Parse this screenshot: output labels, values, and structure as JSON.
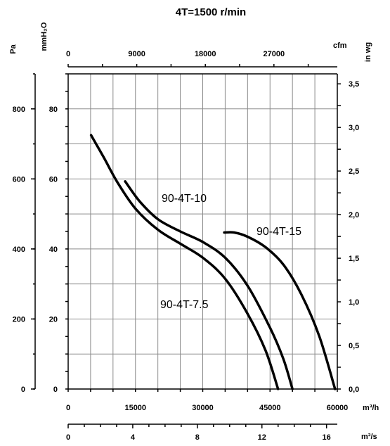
{
  "chart_data": {
    "type": "line",
    "title": "4T=1500 r/min",
    "x_axes": {
      "m3h": {
        "unit": "m³/h",
        "range": [
          0,
          60000
        ],
        "ticks": [
          "0",
          "15000",
          "30000",
          "45000",
          "60000"
        ]
      },
      "cfm": {
        "unit": "cfm",
        "range": [
          0,
          36000
        ],
        "ticks": [
          "0",
          "9000",
          "18000",
          "27000"
        ]
      },
      "m3s": {
        "unit": "m³/s",
        "range": [
          0,
          16.667
        ],
        "ticks": [
          "0",
          "4",
          "8",
          "12",
          "16"
        ]
      }
    },
    "y_axes": {
      "pa": {
        "unit": "Pa",
        "range": [
          0,
          900
        ],
        "ticks": [
          "0",
          "200",
          "400",
          "600",
          "800"
        ]
      },
      "mmh2o": {
        "unit": "mmH₂O",
        "range": [
          0,
          90
        ],
        "ticks": [
          "0",
          "20",
          "40",
          "60",
          "80"
        ]
      },
      "inwg": {
        "unit": "in wg",
        "range": [
          0,
          3.6
        ],
        "ticks": [
          "0,0",
          "0,5",
          "1,0",
          "1,5",
          "2,0",
          "2,5",
          "3,0",
          "3,5"
        ]
      }
    },
    "grid": true,
    "series": [
      {
        "name": "90-4T-7.5",
        "x": [
          5100,
          8000,
          11000,
          15000,
          20000,
          25000,
          30000,
          35000,
          40000,
          44000,
          46800
        ],
        "y": [
          725,
          660,
          590,
          515,
          455,
          415,
          375,
          315,
          215,
          110,
          0
        ]
      },
      {
        "name": "90-4T-10",
        "x": [
          12700,
          16000,
          20000,
          25000,
          30000,
          35000,
          40000,
          45000,
          48000,
          50000
        ],
        "y": [
          593,
          535,
          485,
          450,
          420,
          375,
          295,
          175,
          85,
          0
        ]
      },
      {
        "name": "90-4T-15",
        "x": [
          34800,
          37000,
          40000,
          44000,
          48000,
          52000,
          56000,
          59500
        ],
        "y": [
          447,
          447,
          435,
          405,
          355,
          270,
          150,
          0
        ]
      }
    ]
  }
}
